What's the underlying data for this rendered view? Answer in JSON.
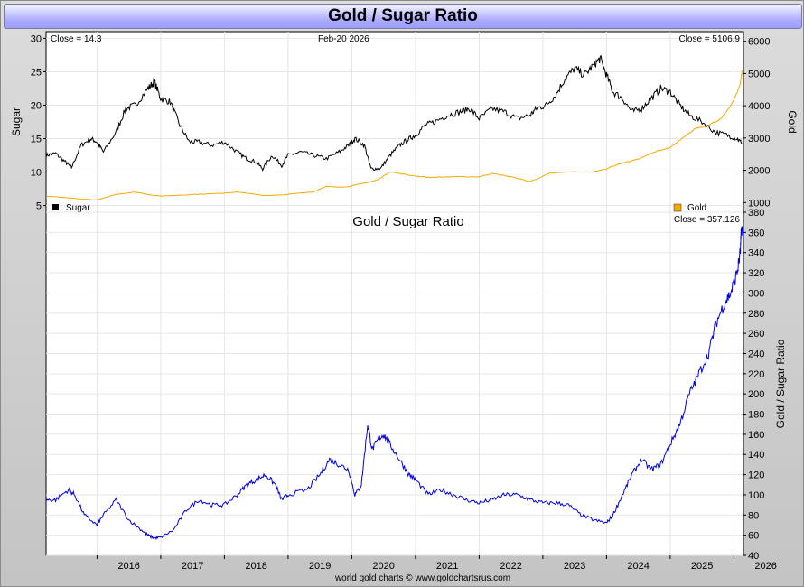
{
  "header": {
    "title": "Gold / Sugar Ratio"
  },
  "footer": {
    "credit": "world gold charts © www.goldchartsrus.com"
  },
  "chart_data": [
    {
      "type": "line",
      "panel": "top",
      "date_label": "Feb-20  2026",
      "x_ticks": [
        "2016",
        "2017",
        "2018",
        "2019",
        "2020",
        "2021",
        "2022",
        "2023",
        "2024",
        "2025",
        "2026"
      ],
      "xlim": [
        2015.2,
        2026.15
      ],
      "legend": [
        {
          "name": "Sugar",
          "color": "#000000",
          "placement": "bottom-left"
        },
        {
          "name": "Gold",
          "color": "#f5a800",
          "placement": "bottom-right"
        }
      ],
      "axes": {
        "left": {
          "label": "Sugar",
          "ylim": [
            4,
            31
          ],
          "ticks": [
            5,
            10,
            15,
            20,
            25,
            30
          ],
          "close_text": "Close = 14.3"
        },
        "right": {
          "label": "Gold",
          "ylim": [
            700,
            6300
          ],
          "ticks": [
            1000,
            2000,
            3000,
            4000,
            5000,
            6000
          ],
          "close_text": "Close = 5106.9"
        }
      },
      "series": [
        {
          "name": "Sugar",
          "axis": "left",
          "color": "#000000",
          "x": [
            2015.2,
            2015.35,
            2015.5,
            2015.6,
            2015.75,
            2015.9,
            2016.0,
            2016.1,
            2016.3,
            2016.45,
            2016.6,
            2016.8,
            2016.9,
            2017.0,
            2017.15,
            2017.3,
            2017.45,
            2017.6,
            2017.8,
            2018.0,
            2018.2,
            2018.35,
            2018.5,
            2018.6,
            2018.75,
            2018.9,
            2019.0,
            2019.2,
            2019.4,
            2019.6,
            2019.8,
            2019.95,
            2020.05,
            2020.2,
            2020.3,
            2020.45,
            2020.6,
            2020.75,
            2020.9,
            2021.0,
            2021.15,
            2021.3,
            2021.5,
            2021.7,
            2021.85,
            2022.0,
            2022.2,
            2022.4,
            2022.6,
            2022.8,
            2022.9,
            2023.05,
            2023.2,
            2023.35,
            2023.5,
            2023.65,
            2023.8,
            2023.9,
            2024.0,
            2024.1,
            2024.25,
            2024.4,
            2024.55,
            2024.7,
            2024.85,
            2025.0,
            2025.15,
            2025.3,
            2025.5,
            2025.7,
            2025.9,
            2026.05,
            2026.13
          ],
          "values": [
            12.5,
            12.8,
            11.5,
            10.7,
            14.0,
            15.0,
            14.5,
            13.0,
            16.0,
            19.5,
            20.0,
            22.5,
            23.5,
            21.0,
            20.5,
            17.0,
            14.5,
            14.5,
            14.0,
            14.5,
            13.0,
            12.0,
            11.5,
            10.5,
            12.5,
            11.0,
            12.5,
            13.0,
            12.5,
            12.0,
            13.0,
            14.0,
            15.0,
            14.0,
            10.5,
            10.5,
            12.5,
            14.0,
            15.0,
            15.5,
            17.0,
            17.5,
            18.5,
            19.0,
            19.5,
            18.0,
            19.5,
            19.0,
            18.0,
            18.5,
            19.5,
            20.0,
            21.5,
            24.0,
            25.5,
            24.5,
            26.0,
            27.0,
            24.5,
            22.0,
            21.0,
            19.0,
            19.5,
            21.0,
            22.5,
            22.0,
            20.0,
            18.5,
            17.5,
            16.0,
            15.5,
            15.0,
            14.3
          ]
        },
        {
          "name": "Gold",
          "axis": "right",
          "color": "#f5a800",
          "x": [
            2015.2,
            2015.5,
            2015.8,
            2016.0,
            2016.3,
            2016.6,
            2016.8,
            2017.0,
            2017.5,
            2017.9,
            2018.2,
            2018.6,
            2018.9,
            2019.2,
            2019.4,
            2019.6,
            2019.9,
            2020.2,
            2020.4,
            2020.6,
            2020.9,
            2021.2,
            2021.6,
            2022.0,
            2022.2,
            2022.5,
            2022.8,
            2023.1,
            2023.4,
            2023.8,
            2024.0,
            2024.2,
            2024.5,
            2024.8,
            2025.0,
            2025.2,
            2025.4,
            2025.6,
            2025.8,
            2025.95,
            2026.05,
            2026.1,
            2026.13
          ],
          "values": [
            1200,
            1150,
            1100,
            1080,
            1250,
            1330,
            1250,
            1200,
            1250,
            1280,
            1330,
            1220,
            1230,
            1300,
            1330,
            1500,
            1480,
            1600,
            1700,
            1950,
            1850,
            1780,
            1800,
            1800,
            1900,
            1800,
            1650,
            1900,
            1950,
            1950,
            2050,
            2200,
            2350,
            2600,
            2700,
            3000,
            3300,
            3400,
            3600,
            4000,
            4400,
            4700,
            5107
          ]
        }
      ]
    },
    {
      "type": "line",
      "panel": "bottom",
      "title": "Gold  /  Sugar Ratio",
      "ylabel": "Gold / Sugar Ratio",
      "close_text": "Close = 357.126",
      "ylim": [
        40,
        380
      ],
      "y_ticks": [
        40,
        60,
        80,
        100,
        120,
        140,
        160,
        180,
        200,
        220,
        240,
        260,
        280,
        300,
        320,
        340,
        360,
        380
      ],
      "x_ticks": [
        "2016",
        "2017",
        "2018",
        "2019",
        "2020",
        "2021",
        "2022",
        "2023",
        "2024",
        "2025",
        "2026"
      ],
      "xlim": [
        2015.2,
        2026.15
      ],
      "series": [
        {
          "name": "Gold / Sugar Ratio",
          "color": "#0000e0",
          "x": [
            2015.2,
            2015.35,
            2015.55,
            2015.65,
            2015.8,
            2016.0,
            2016.1,
            2016.3,
            2016.5,
            2016.7,
            2016.8,
            2016.9,
            2017.0,
            2017.2,
            2017.4,
            2017.6,
            2017.8,
            2018.0,
            2018.2,
            2018.35,
            2018.5,
            2018.65,
            2018.8,
            2018.9,
            2019.0,
            2019.3,
            2019.5,
            2019.65,
            2019.8,
            2019.95,
            2020.05,
            2020.15,
            2020.25,
            2020.32,
            2020.42,
            2020.5,
            2020.6,
            2020.75,
            2020.9,
            2021.0,
            2021.2,
            2021.4,
            2021.6,
            2021.8,
            2022.0,
            2022.2,
            2022.4,
            2022.6,
            2022.8,
            2023.0,
            2023.2,
            2023.4,
            2023.6,
            2023.8,
            2024.0,
            2024.1,
            2024.25,
            2024.4,
            2024.55,
            2024.7,
            2024.85,
            2025.0,
            2025.15,
            2025.3,
            2025.45,
            2025.6,
            2025.72,
            2025.85,
            2025.95,
            2026.05,
            2026.1,
            2026.12,
            2026.15
          ],
          "values": [
            95,
            95,
            105,
            100,
            80,
            70,
            80,
            95,
            75,
            65,
            60,
            57,
            58,
            65,
            85,
            95,
            90,
            90,
            100,
            110,
            115,
            120,
            110,
            95,
            100,
            105,
            120,
            135,
            130,
            125,
            100,
            110,
            170,
            145,
            155,
            160,
            150,
            135,
            120,
            115,
            100,
            105,
            100,
            95,
            92,
            95,
            100,
            100,
            95,
            92,
            92,
            90,
            80,
            75,
            72,
            80,
            100,
            120,
            135,
            125,
            130,
            150,
            170,
            200,
            220,
            240,
            270,
            290,
            300,
            320,
            340,
            365,
            357
          ]
        }
      ]
    }
  ]
}
